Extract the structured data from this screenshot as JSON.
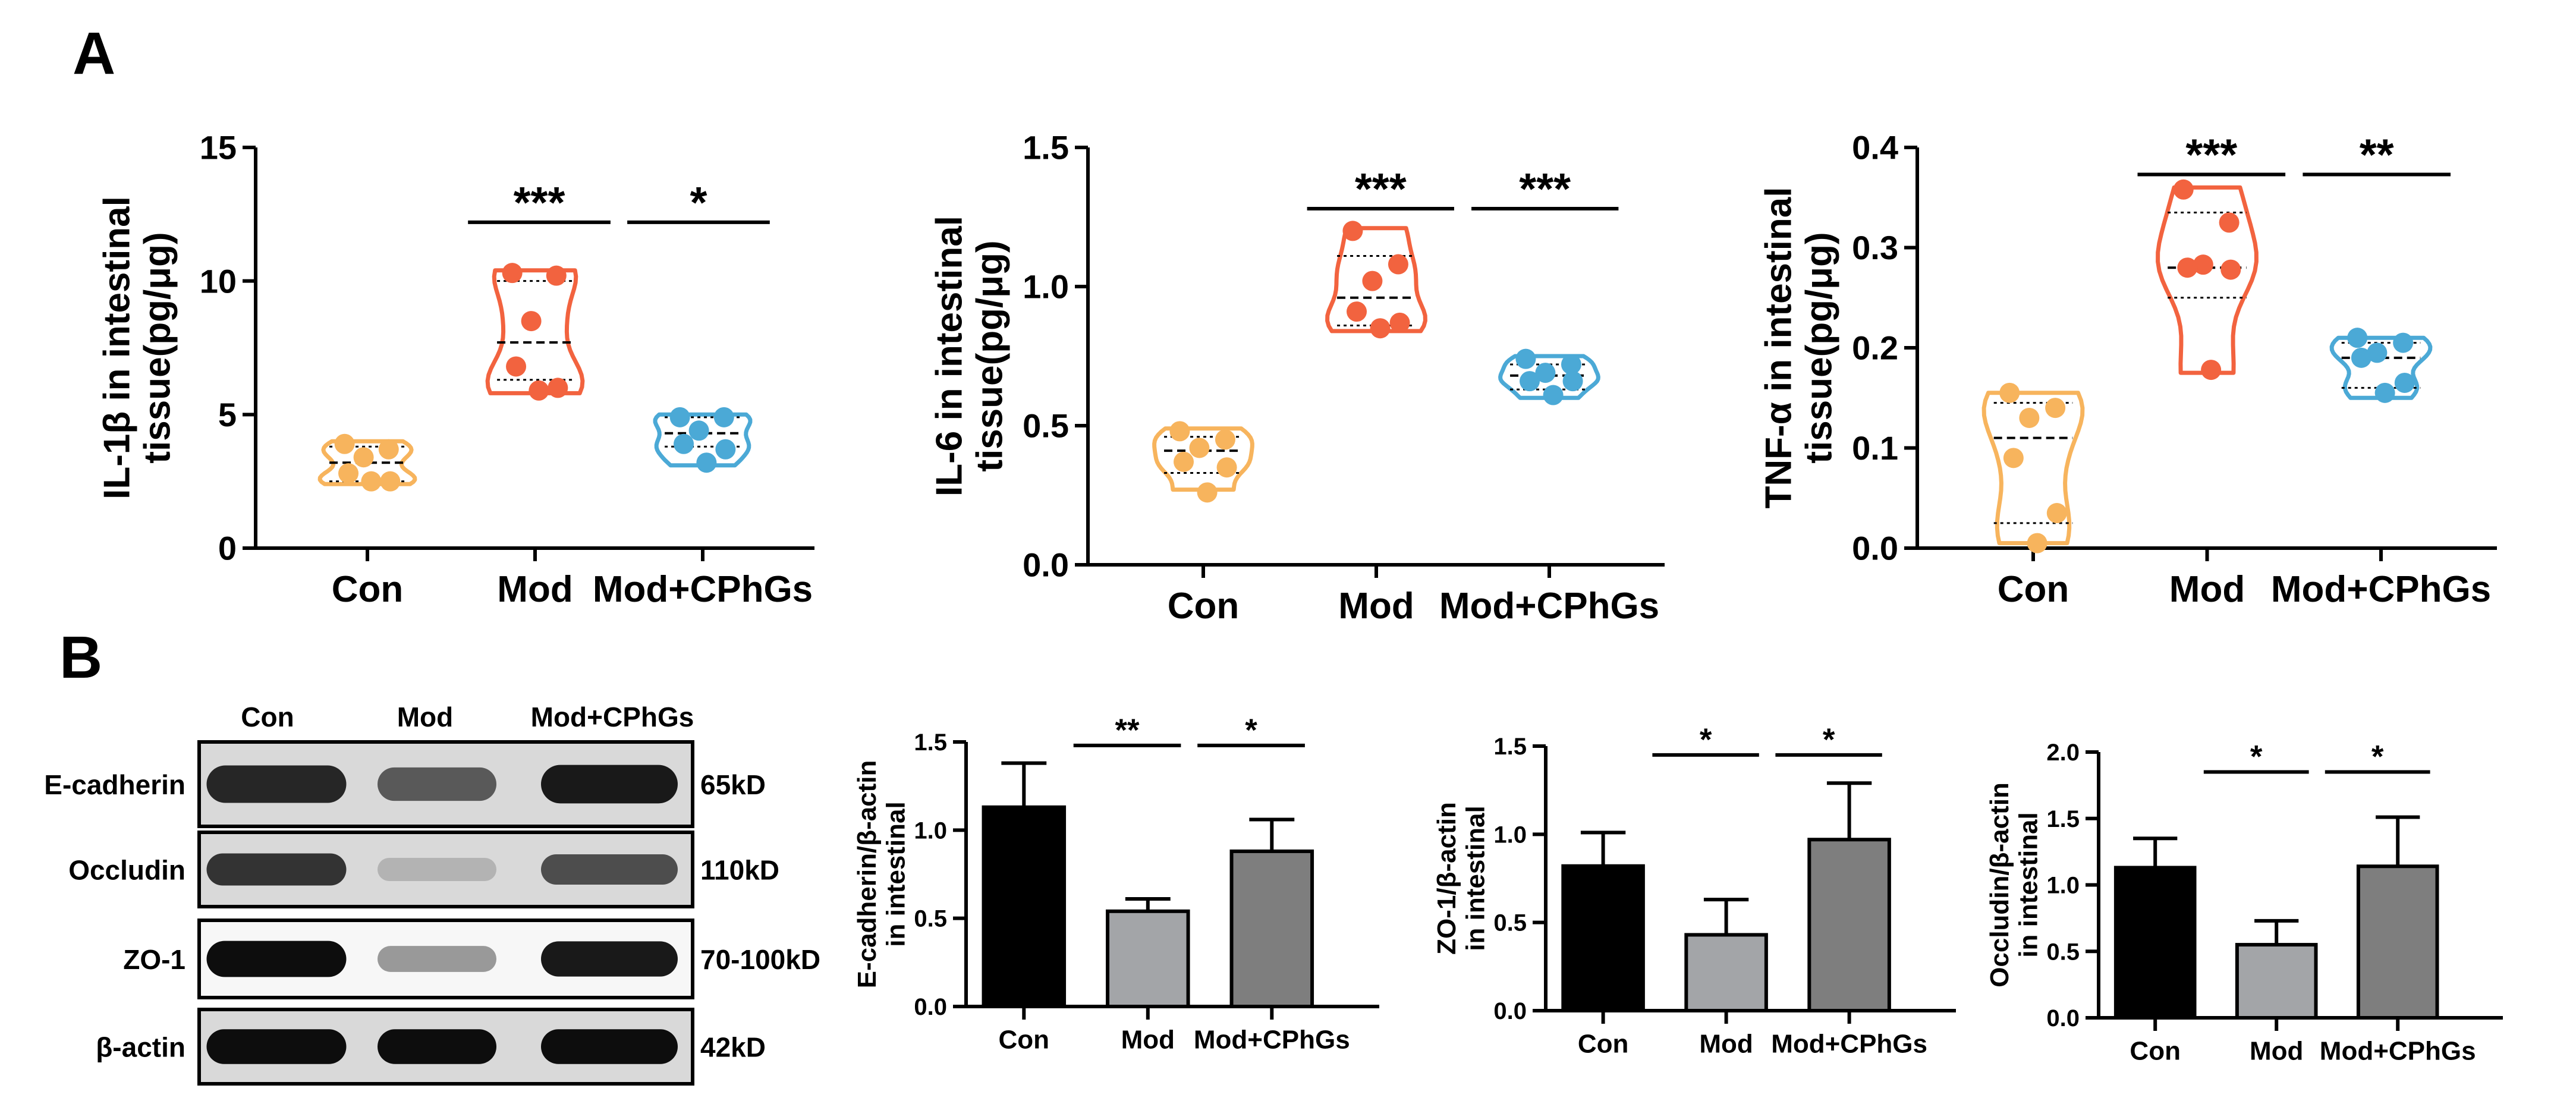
{
  "panel_labels": {
    "a": "A",
    "b": "B"
  },
  "colors": {
    "con": "#F7B45D",
    "mod": "#F2633F",
    "cphgs": "#4BA9D6",
    "bar_con": "#000000",
    "bar_mod": "#A3A5A8",
    "bar_cphgs": "#7E7E7E"
  },
  "blot": {
    "lane_labels": [
      "Con",
      "Mod",
      "Mod+CPhGs"
    ],
    "rows": [
      {
        "protein": "E-cadherin",
        "size": "65kD",
        "intensity": [
          0.85,
          0.65,
          0.9
        ]
      },
      {
        "protein": "Occludin",
        "size": "110kD",
        "intensity": [
          0.8,
          0.3,
          0.7
        ]
      },
      {
        "protein": "ZO-1",
        "size": "70-100kD",
        "intensity": [
          0.95,
          0.4,
          0.9
        ]
      },
      {
        "protein": "β-actin",
        "size": "42kD",
        "intensity": [
          0.95,
          0.95,
          0.95
        ]
      }
    ]
  },
  "chart_data": [
    {
      "type": "violin",
      "ylabel_lines": [
        "IL-1β in intestinal",
        "tissue(pg/μg)"
      ],
      "categories": [
        "Con",
        "Mod",
        "Mod+CPhGs"
      ],
      "ylim": [
        0,
        15
      ],
      "yticks": [
        0,
        5,
        10,
        15
      ],
      "series": [
        {
          "name": "Con",
          "values": [
            3.9,
            3.7,
            3.4,
            2.8,
            2.5,
            2.5
          ]
        },
        {
          "name": "Mod",
          "values": [
            10.3,
            10.2,
            8.5,
            6.8,
            6.0,
            5.9
          ]
        },
        {
          "name": "Mod+CPhGs",
          "values": [
            4.9,
            4.9,
            4.4,
            3.9,
            3.7,
            3.2
          ]
        }
      ],
      "violin_range": [
        [
          2.4,
          4.0
        ],
        [
          5.8,
          10.4
        ],
        [
          3.1,
          5.0
        ]
      ],
      "quartiles": [
        [
          2.5,
          3.2,
          3.8
        ],
        [
          6.3,
          7.7,
          10.0
        ],
        [
          3.8,
          4.3,
          4.9
        ]
      ],
      "significance": [
        {
          "from": 0.6,
          "to": 1.45,
          "y": 12.2,
          "label": "***"
        },
        {
          "from": 1.55,
          "to": 2.4,
          "y": 12.2,
          "label": "*"
        }
      ]
    },
    {
      "type": "violin",
      "ylabel_lines": [
        "IL-6 in intestinal",
        "tissue(pg/μg)"
      ],
      "categories": [
        "Con",
        "Mod",
        "Mod+CPhGs"
      ],
      "ylim": [
        0,
        1.5
      ],
      "yticks": [
        0.0,
        0.5,
        1.0,
        1.5
      ],
      "ytick_labels": [
        "0.0",
        "0.5",
        "1.0",
        "1.5"
      ],
      "series": [
        {
          "name": "Con",
          "values": [
            0.48,
            0.45,
            0.42,
            0.37,
            0.35,
            0.26
          ]
        },
        {
          "name": "Mod",
          "values": [
            1.2,
            1.08,
            1.02,
            0.91,
            0.87,
            0.85
          ]
        },
        {
          "name": "Mod+CPhGs",
          "values": [
            0.74,
            0.72,
            0.69,
            0.66,
            0.66,
            0.61
          ]
        }
      ],
      "violin_range": [
        [
          0.27,
          0.49
        ],
        [
          0.84,
          1.21
        ],
        [
          0.6,
          0.75
        ]
      ],
      "quartiles": [
        [
          0.33,
          0.41,
          0.46
        ],
        [
          0.86,
          0.96,
          1.11
        ],
        [
          0.63,
          0.68,
          0.72
        ]
      ],
      "significance": [
        {
          "from": 0.6,
          "to": 1.45,
          "y": 1.28,
          "label": "***"
        },
        {
          "from": 1.55,
          "to": 2.4,
          "y": 1.28,
          "label": "***"
        }
      ]
    },
    {
      "type": "violin",
      "ylabel_lines": [
        "TNF-α in intestinal",
        "tissue(pg/μg)"
      ],
      "categories": [
        "Con",
        "Mod",
        "Mod+CPhGs"
      ],
      "ylim": [
        0,
        0.4
      ],
      "yticks": [
        0.0,
        0.1,
        0.2,
        0.3,
        0.4
      ],
      "ytick_labels": [
        "0.0",
        "0.1",
        "0.2",
        "0.3",
        "0.4"
      ],
      "series": [
        {
          "name": "Con",
          "values": [
            0.155,
            0.14,
            0.13,
            0.09,
            0.035,
            0.005
          ]
        },
        {
          "name": "Mod",
          "values": [
            0.358,
            0.325,
            0.283,
            0.28,
            0.278,
            0.178
          ]
        },
        {
          "name": "Mod+CPhGs",
          "values": [
            0.21,
            0.205,
            0.195,
            0.19,
            0.165,
            0.155
          ]
        }
      ],
      "violin_range": [
        [
          0.005,
          0.155
        ],
        [
          0.175,
          0.36
        ],
        [
          0.15,
          0.21
        ]
      ],
      "quartiles": [
        [
          0.025,
          0.11,
          0.145
        ],
        [
          0.25,
          0.28,
          0.335
        ],
        [
          0.16,
          0.19,
          0.205
        ]
      ],
      "significance": [
        {
          "from": 0.6,
          "to": 1.45,
          "y": 0.373,
          "label": "***"
        },
        {
          "from": 1.55,
          "to": 2.4,
          "y": 0.373,
          "label": "**"
        }
      ]
    },
    {
      "type": "bar",
      "ylabel_lines": [
        "E-cadherin/β-actin",
        "in intestinal"
      ],
      "categories": [
        "Con",
        "Mod",
        "Mod+CPhGs"
      ],
      "ylim": [
        0,
        1.5
      ],
      "yticks": [
        0.0,
        0.5,
        1.0,
        1.5
      ],
      "ytick_labels": [
        "0.0",
        "0.5",
        "1.0",
        "1.5"
      ],
      "values": [
        1.13,
        0.54,
        0.88
      ],
      "errors": [
        0.25,
        0.07,
        0.18
      ],
      "significance": [
        {
          "from": 0.3,
          "to": 0.95,
          "y": 1.48,
          "label": "**"
        },
        {
          "from": 1.05,
          "to": 1.7,
          "y": 1.48,
          "label": "*"
        }
      ]
    },
    {
      "type": "bar",
      "ylabel_lines": [
        "ZO-1/β-actin",
        "in intestinal"
      ],
      "categories": [
        "Con",
        "Mod",
        "Mod+CPhGs"
      ],
      "ylim": [
        0,
        1.5
      ],
      "yticks": [
        0.0,
        0.5,
        1.0,
        1.5
      ],
      "ytick_labels": [
        "0.0",
        "0.5",
        "1.0",
        "1.5"
      ],
      "values": [
        0.82,
        0.43,
        0.97
      ],
      "errors": [
        0.19,
        0.2,
        0.32
      ],
      "significance": [
        {
          "from": 0.3,
          "to": 0.95,
          "y": 1.45,
          "label": "*"
        },
        {
          "from": 1.05,
          "to": 1.7,
          "y": 1.45,
          "label": "*"
        }
      ]
    },
    {
      "type": "bar",
      "ylabel_lines": [
        "Occludin/β-actin",
        "in intestinal"
      ],
      "categories": [
        "Con",
        "Mod",
        "Mod+CPhGs"
      ],
      "ylim": [
        0,
        2.0
      ],
      "yticks": [
        0.0,
        0.5,
        1.0,
        1.5,
        2.0
      ],
      "ytick_labels": [
        "0.0",
        "0.5",
        "1.0",
        "1.5",
        "2.0"
      ],
      "values": [
        1.13,
        0.55,
        1.14
      ],
      "errors": [
        0.22,
        0.18,
        0.37
      ],
      "significance": [
        {
          "from": 0.3,
          "to": 0.95,
          "y": 1.85,
          "label": "*"
        },
        {
          "from": 1.05,
          "to": 1.7,
          "y": 1.85,
          "label": "*"
        }
      ]
    }
  ]
}
